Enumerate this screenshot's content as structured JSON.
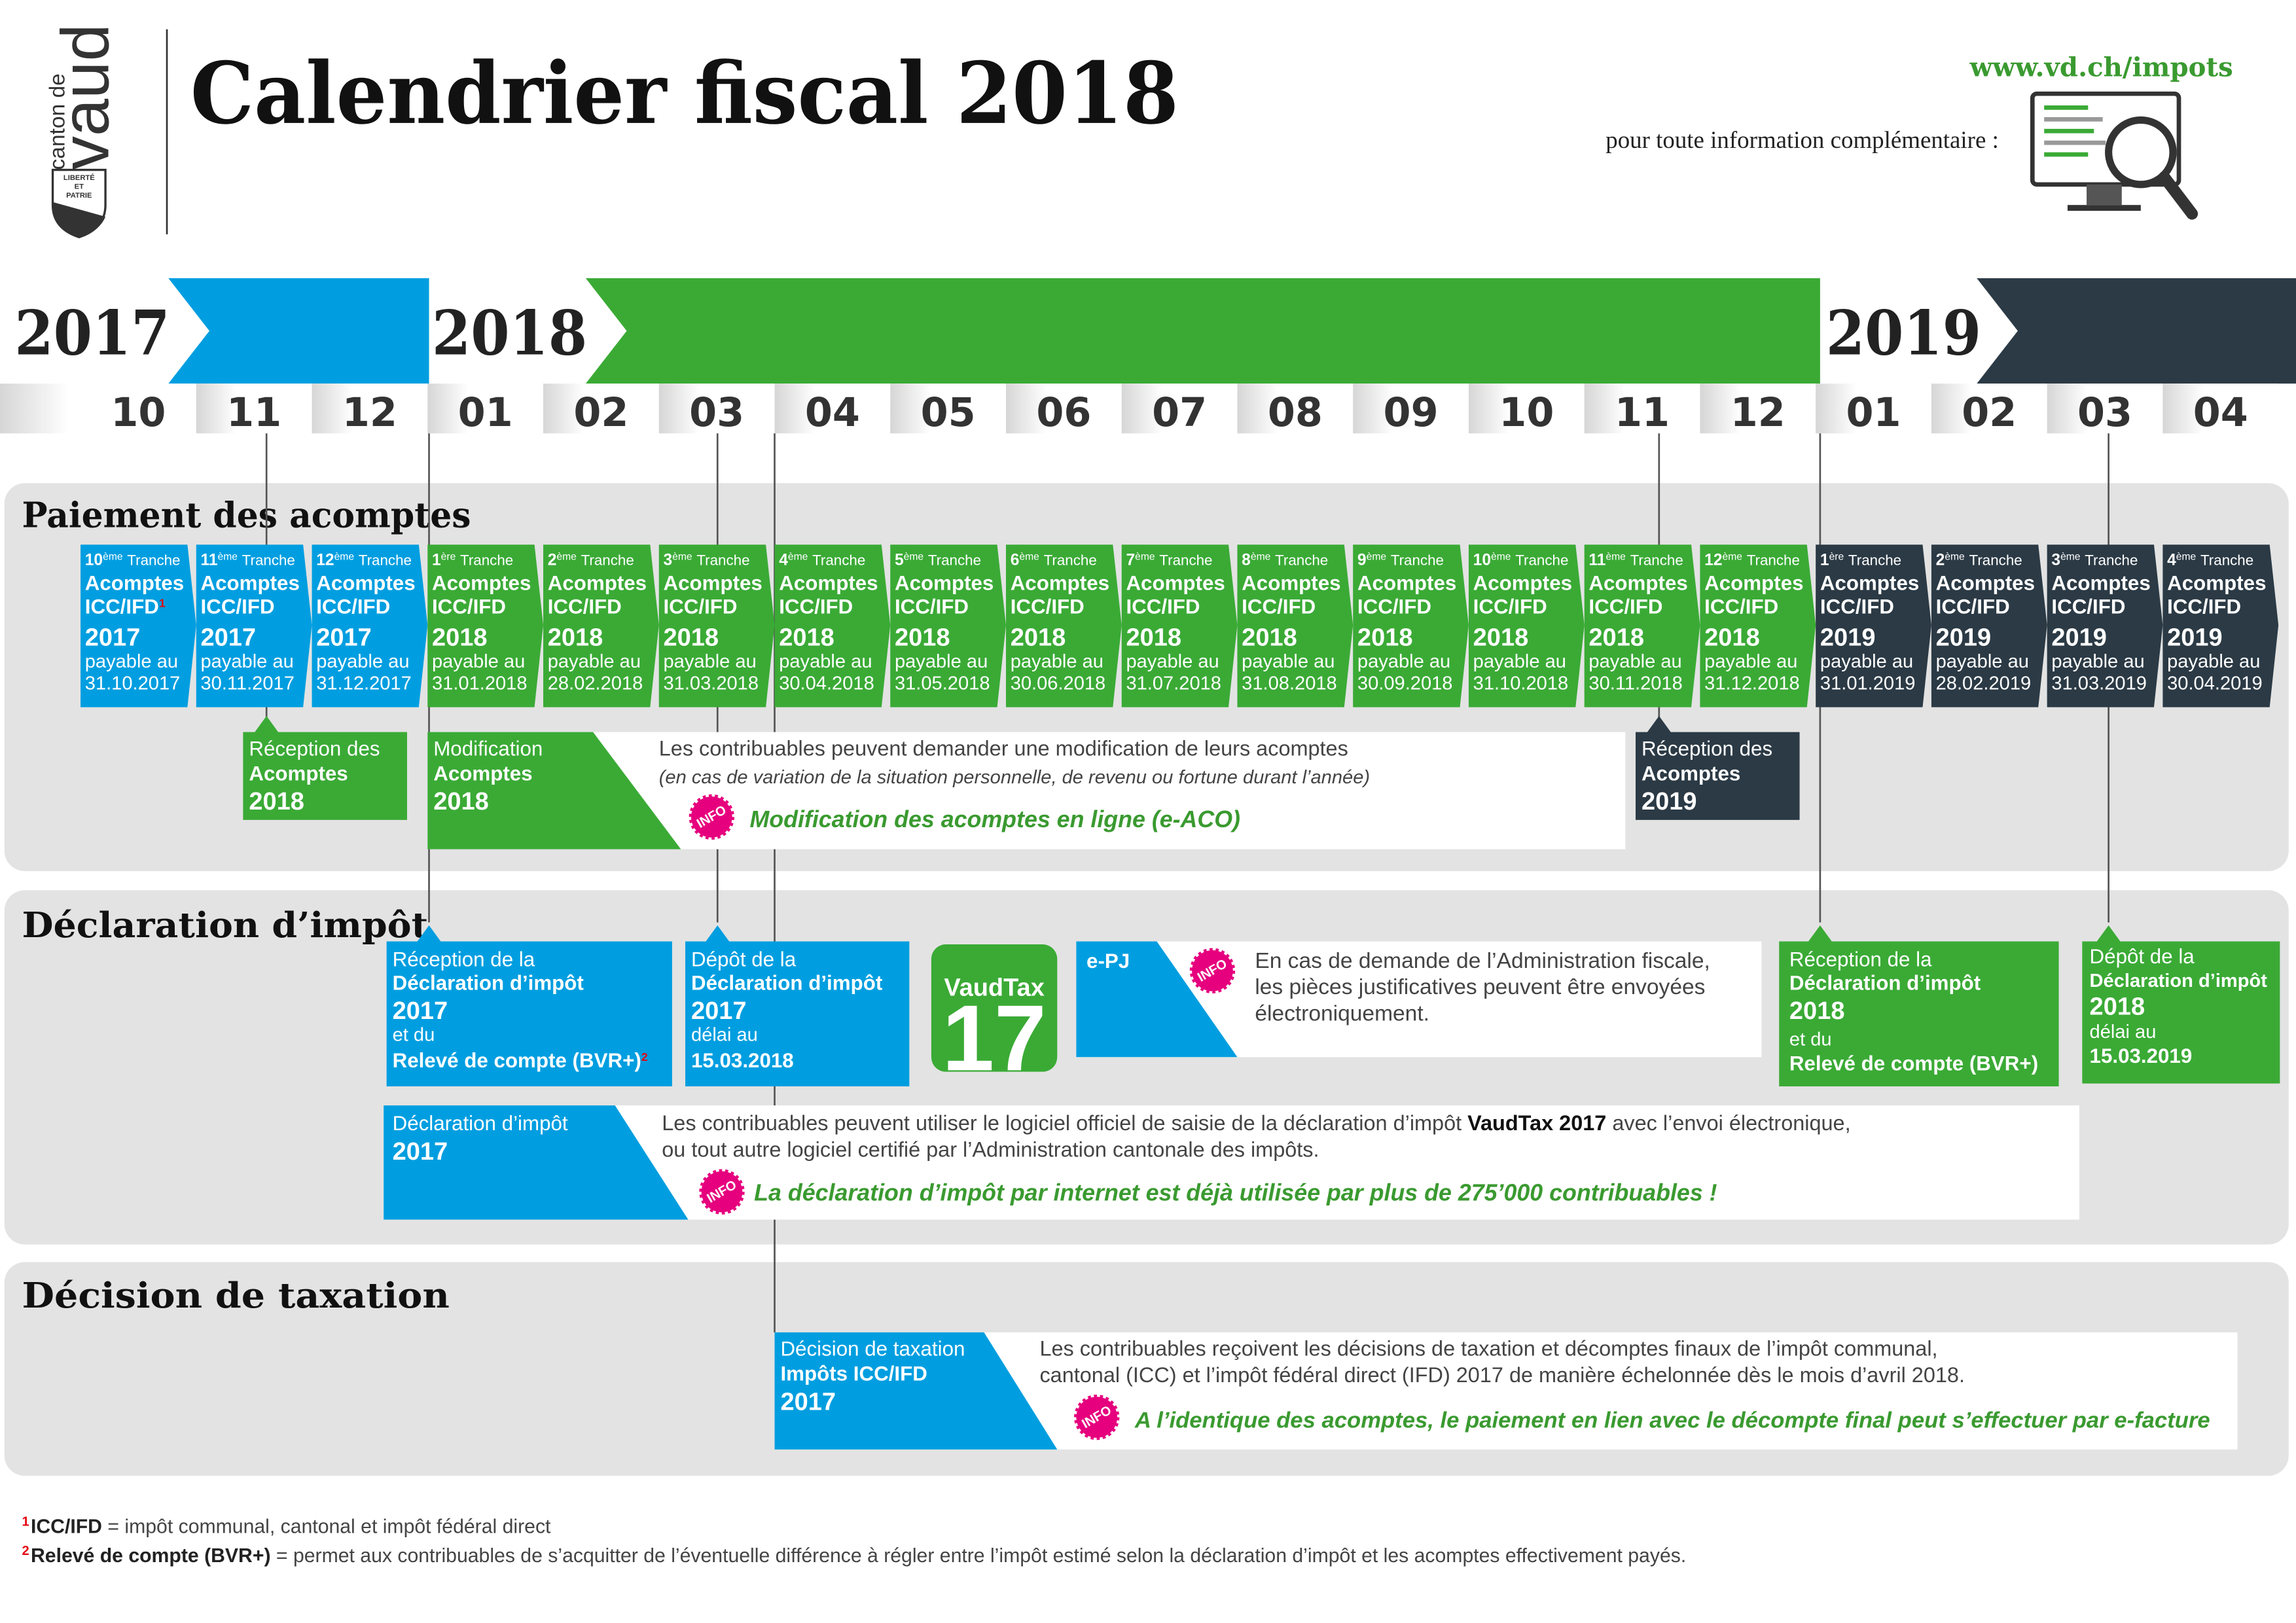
{
  "header": {
    "logo_top": "canton de",
    "logo_main": "vaud",
    "logo_motto": [
      "LIBERTÉ",
      "ET",
      "PATRIE"
    ],
    "title": "Calendrier fiscal 2018",
    "url": "www.vd.ch/impots",
    "info_text": "pour toute information complémentaire :"
  },
  "timeline": {
    "years": [
      "2017",
      "2018",
      "2019"
    ],
    "months": [
      "10",
      "11",
      "12",
      "01",
      "02",
      "03",
      "04",
      "05",
      "06",
      "07",
      "08",
      "09",
      "10",
      "11",
      "12",
      "01",
      "02",
      "03",
      "04"
    ]
  },
  "info_badge": "INFO",
  "acomptes": {
    "title": "Paiement des acomptes",
    "tranche_groups": [
      {
        "color": "#009ee0",
        "tranches": [
          {
            "ordinal": "10",
            "suffix": "ème",
            "word": "Tranche",
            "line1": "Acomptes",
            "line2": "ICC/IFD",
            "note_ref": "1",
            "year": "2017",
            "due": "payable au",
            "date": "31.10.2017"
          },
          {
            "ordinal": "11",
            "suffix": "ème",
            "word": "Tranche",
            "line1": "Acomptes",
            "line2": "ICC/IFD",
            "year": "2017",
            "due": "payable au",
            "date": "30.11.2017"
          },
          {
            "ordinal": "12",
            "suffix": "ème",
            "word": "Tranche",
            "line1": "Acomptes",
            "line2": "ICC/IFD",
            "year": "2017",
            "due": "payable au",
            "date": "31.12.2017"
          }
        ]
      },
      {
        "color": "#3aaa35",
        "tranches": [
          {
            "ordinal": "1",
            "suffix": "ère",
            "word": "Tranche",
            "line1": "Acomptes",
            "line2": "ICC/IFD",
            "year": "2018",
            "due": "payable au",
            "date": "31.01.2018"
          },
          {
            "ordinal": "2",
            "suffix": "ème",
            "word": "Tranche",
            "line1": "Acomptes",
            "line2": "ICC/IFD",
            "year": "2018",
            "due": "payable au",
            "date": "28.02.2018"
          },
          {
            "ordinal": "3",
            "suffix": "ème",
            "word": "Tranche",
            "line1": "Acomptes",
            "line2": "ICC/IFD",
            "year": "2018",
            "due": "payable au",
            "date": "31.03.2018"
          },
          {
            "ordinal": "4",
            "suffix": "ème",
            "word": "Tranche",
            "line1": "Acomptes",
            "line2": "ICC/IFD",
            "year": "2018",
            "due": "payable au",
            "date": "30.04.2018"
          },
          {
            "ordinal": "5",
            "suffix": "ème",
            "word": "Tranche",
            "line1": "Acomptes",
            "line2": "ICC/IFD",
            "year": "2018",
            "due": "payable au",
            "date": "31.05.2018"
          },
          {
            "ordinal": "6",
            "suffix": "ème",
            "word": "Tranche",
            "line1": "Acomptes",
            "line2": "ICC/IFD",
            "year": "2018",
            "due": "payable au",
            "date": "30.06.2018"
          },
          {
            "ordinal": "7",
            "suffix": "ème",
            "word": "Tranche",
            "line1": "Acomptes",
            "line2": "ICC/IFD",
            "year": "2018",
            "due": "payable au",
            "date": "31.07.2018"
          },
          {
            "ordinal": "8",
            "suffix": "ème",
            "word": "Tranche",
            "line1": "Acomptes",
            "line2": "ICC/IFD",
            "year": "2018",
            "due": "payable au",
            "date": "31.08.2018"
          },
          {
            "ordinal": "9",
            "suffix": "ème",
            "word": "Tranche",
            "line1": "Acomptes",
            "line2": "ICC/IFD",
            "year": "2018",
            "due": "payable au",
            "date": "30.09.2018"
          },
          {
            "ordinal": "10",
            "suffix": "ème",
            "word": "Tranche",
            "line1": "Acomptes",
            "line2": "ICC/IFD",
            "year": "2018",
            "due": "payable au",
            "date": "31.10.2018"
          },
          {
            "ordinal": "11",
            "suffix": "ème",
            "word": "Tranche",
            "line1": "Acomptes",
            "line2": "ICC/IFD",
            "year": "2018",
            "due": "payable au",
            "date": "30.11.2018"
          },
          {
            "ordinal": "12",
            "suffix": "ème",
            "word": "Tranche",
            "line1": "Acomptes",
            "line2": "ICC/IFD",
            "year": "2018",
            "due": "payable au",
            "date": "31.12.2018"
          }
        ]
      },
      {
        "color": "#2b3a45",
        "tranches": [
          {
            "ordinal": "1",
            "suffix": "ère",
            "word": "Tranche",
            "line1": "Acomptes",
            "line2": "ICC/IFD",
            "year": "2019",
            "due": "payable au",
            "date": "31.01.2019"
          },
          {
            "ordinal": "2",
            "suffix": "ème",
            "word": "Tranche",
            "line1": "Acomptes",
            "line2": "ICC/IFD",
            "year": "2019",
            "due": "payable au",
            "date": "28.02.2019"
          },
          {
            "ordinal": "3",
            "suffix": "ème",
            "word": "Tranche",
            "line1": "Acomptes",
            "line2": "ICC/IFD",
            "year": "2019",
            "due": "payable au",
            "date": "31.03.2019"
          },
          {
            "ordinal": "4",
            "suffix": "ème",
            "word": "Tranche",
            "line1": "Acomptes",
            "line2": "ICC/IFD",
            "year": "2019",
            "due": "payable au",
            "date": "30.04.2019"
          }
        ]
      }
    ],
    "reception_2018": [
      "Réception des",
      "Acomptes",
      "2018"
    ],
    "modification": {
      "label": [
        "Modification",
        "Acomptes",
        "2018"
      ],
      "text": "Les contribuables peuvent demander une modification de leurs acomptes",
      "note": "(en cas de variation de la situation personnelle, de revenu ou fortune durant l’année)",
      "info": "Modification des acomptes en ligne (e-ACO)"
    },
    "reception_2019": [
      "Réception des",
      "Acomptes",
      "2019"
    ]
  },
  "declaration": {
    "title": "Déclaration d’impôt",
    "reception_2017": {
      "lines": [
        "Réception de la",
        "Déclaration d’impôt",
        "2017",
        "et du",
        "Relevé de compte (BVR+)"
      ],
      "note_ref": "2"
    },
    "depot_2017": [
      "Dépôt de la",
      "Déclaration d’impôt",
      "2017",
      "délai au",
      "15.03.2018"
    ],
    "vaudtax": {
      "name": "VaudTax",
      "number": "17"
    },
    "epj": {
      "label": "e-PJ",
      "text": [
        "En cas de demande de l’Administration fiscale,",
        "les pièces justificatives peuvent être envoyées",
        "électroniquement."
      ]
    },
    "reception_2018": [
      "Réception de la",
      "Déclaration d’impôt",
      "2018",
      "et du",
      "Relevé de compte (BVR+)"
    ],
    "depot_2018": [
      "Dépôt de la",
      "Déclaration d’impôt",
      "2018",
      "délai au",
      "15.03.2019"
    ],
    "online": {
      "label": [
        "Déclaration d’impôt",
        "2017"
      ],
      "text": [
        [
          "Les contribuables peuvent utiliser le logiciel officiel de saisie de la déclaration d’impôt ",
          "VaudTax 2017",
          " avec l’envoi électronique,"
        ],
        "ou tout autre logiciel certifié par l’Administration cantonale des impôts."
      ],
      "info": "La déclaration d’impôt par internet est déjà utilisée par plus de 275’000 contribuables !"
    }
  },
  "decision": {
    "title": "Décision de taxation",
    "label": [
      "Décision de taxation",
      "Impôts ICC/IFD",
      "2017"
    ],
    "text": [
      "Les contribuables reçoivent les décisions de taxation et décomptes finaux de l’impôt communal,",
      "cantonal (ICC) et l’impôt fédéral direct (IFD) 2017 de manière échelonnée dès le mois d’avril 2018."
    ],
    "info": "A l’identique des acomptes, le paiement en lien avec le décompte final peut s’effectuer par e-facture"
  },
  "footnotes": [
    {
      "ref": "1",
      "term": "ICC/IFD",
      "text": " = impôt communal, cantonal et impôt fédéral direct"
    },
    {
      "ref": "2",
      "term": "Relevé de compte (BVR+)",
      "text": " = permet aux contribuables de s’acquitter de l’éventuelle différence à régler entre l’impôt estimé selon la déclaration d’impôt et les acomptes effectivement payés."
    }
  ]
}
